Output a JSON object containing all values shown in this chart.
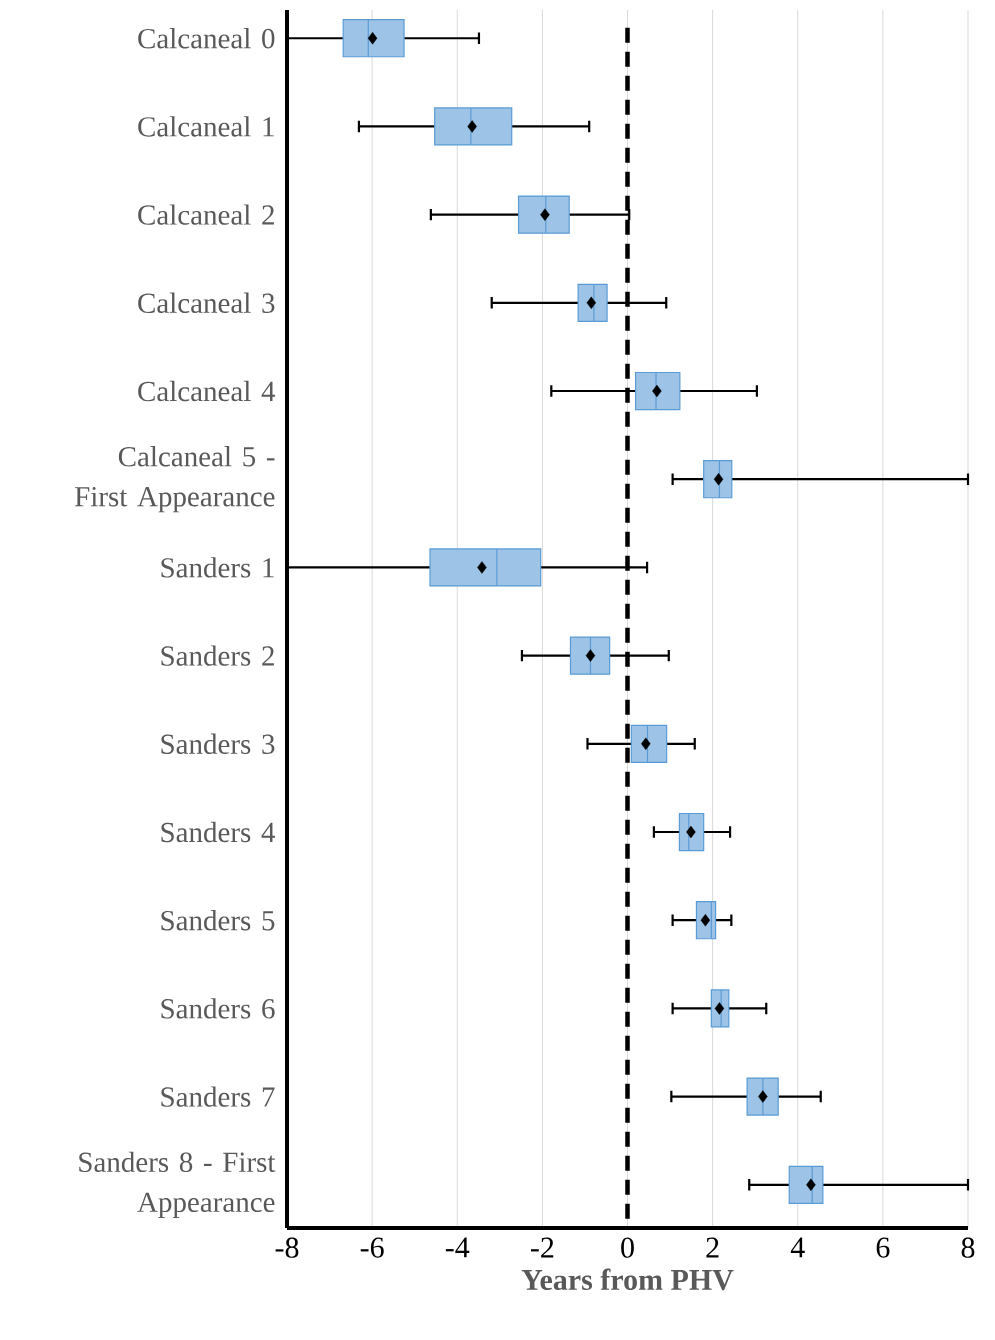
{
  "chart_data": {
    "type": "box",
    "orientation": "horizontal",
    "xlabel": "Years from PHV",
    "categories": [
      "Calcaneal 0",
      "Calcaneal 1",
      "Calcaneal 2",
      "Calcaneal 3",
      "Calcaneal 4",
      "Calcaneal 5 - First Appearance",
      "Sanders 1",
      "Sanders 2",
      "Sanders 3",
      "Sanders 4",
      "Sanders 5",
      "Sanders 6",
      "Sanders 7",
      "Sanders 8 - First Appearance"
    ],
    "boxes": [
      {
        "low": -8,
        "q1": -6.68,
        "median": -6.09,
        "q3": -5.25,
        "high": -3.49,
        "mean": -5.99
      },
      {
        "low": -6.31,
        "q1": -4.53,
        "median": -3.68,
        "q3": -2.72,
        "high": -0.9,
        "mean": -3.65
      },
      {
        "low": -4.62,
        "q1": -2.56,
        "median": -1.92,
        "q3": -1.37,
        "high": 0.04,
        "mean": -1.94
      },
      {
        "low": -3.19,
        "q1": -1.16,
        "median": -0.79,
        "q3": -0.48,
        "high": 0.91,
        "mean": -0.85
      },
      {
        "low": -1.79,
        "q1": 0.19,
        "median": 0.67,
        "q3": 1.23,
        "high": 3.04,
        "mean": 0.69
      },
      {
        "low": 1.06,
        "q1": 1.79,
        "median": 2.16,
        "q3": 2.45,
        "high": 8,
        "mean": 2.14
      },
      {
        "low": -8,
        "q1": -4.64,
        "median": -3.07,
        "q3": -2.04,
        "high": 0.46,
        "mean": -3.42
      },
      {
        "low": -2.48,
        "q1": -1.34,
        "median": -0.87,
        "q3": -0.42,
        "high": 0.97,
        "mean": -0.87
      },
      {
        "low": -0.94,
        "q1": 0.09,
        "median": 0.47,
        "q3": 0.92,
        "high": 1.58,
        "mean": 0.43
      },
      {
        "low": 0.62,
        "q1": 1.22,
        "median": 1.44,
        "q3": 1.79,
        "high": 2.41,
        "mean": 1.49
      },
      {
        "low": 1.06,
        "q1": 1.62,
        "median": 1.97,
        "q3": 2.07,
        "high": 2.44,
        "mean": 1.83
      },
      {
        "low": 1.06,
        "q1": 1.97,
        "median": 2.2,
        "q3": 2.38,
        "high": 3.26,
        "mean": 2.16
      },
      {
        "low": 1.03,
        "q1": 2.81,
        "median": 3.18,
        "q3": 3.54,
        "high": 4.54,
        "mean": 3.18
      },
      {
        "low": 2.86,
        "q1": 3.8,
        "median": 4.34,
        "q3": 4.59,
        "high": 8,
        "mean": 4.31
      }
    ],
    "color": "#9dc3e6",
    "marker": "diamond",
    "xlim": [
      -8,
      8
    ],
    "xticks": [
      -8,
      -6,
      -4,
      -2,
      0,
      2,
      4,
      6,
      8
    ],
    "grid": "x",
    "ref_lines": [
      {
        "axis": "x",
        "value": 0,
        "color": "#000000",
        "line_style": "dashed"
      }
    ]
  }
}
